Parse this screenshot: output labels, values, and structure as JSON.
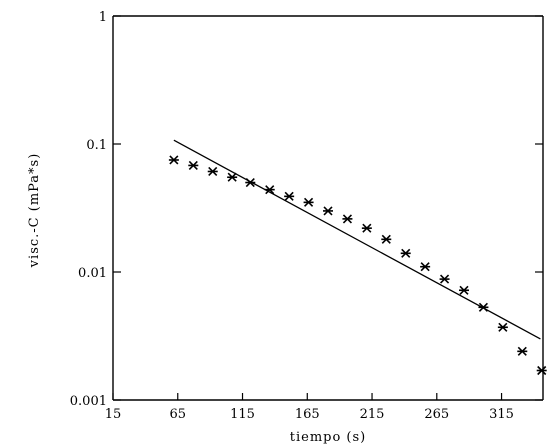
{
  "chart_data": {
    "type": "scatter",
    "title": "",
    "xlabel": "tiempo (s)",
    "ylabel": "visc.-C (mPa*s)",
    "xlim": [
      15,
      347
    ],
    "ylim": [
      0.001,
      1
    ],
    "y_scale": "log",
    "grid": false,
    "x_ticks": [
      15,
      65,
      115,
      165,
      215,
      265,
      315
    ],
    "x_tick_labels": [
      "15",
      "65",
      "115",
      "165",
      "215",
      "265",
      "315"
    ],
    "y_ticks": [
      0.001,
      0.01,
      0.1,
      1
    ],
    "y_tick_labels": [
      "0.001",
      "0.01",
      "0.1",
      "1"
    ],
    "series": [
      {
        "kind": "points",
        "marker": "asterisk",
        "x": [
          62,
          77,
          92,
          107,
          121,
          136,
          151,
          166,
          181,
          196,
          211,
          226,
          241,
          256,
          271,
          286,
          301,
          316,
          331,
          346
        ],
        "y": [
          0.075,
          0.068,
          0.061,
          0.055,
          0.05,
          0.044,
          0.039,
          0.035,
          0.03,
          0.026,
          0.022,
          0.018,
          0.014,
          0.011,
          0.0088,
          0.0072,
          0.0053,
          0.0037,
          0.0024,
          0.0017
        ]
      },
      {
        "kind": "line",
        "x": [
          62,
          345
        ],
        "y": [
          0.107,
          0.003
        ]
      }
    ]
  }
}
